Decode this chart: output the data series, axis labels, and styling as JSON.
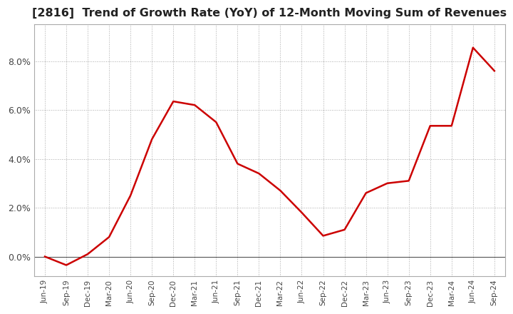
{
  "title": "[2816]  Trend of Growth Rate (YoY) of 12-Month Moving Sum of Revenues",
  "title_fontsize": 11.5,
  "line_color": "#cc0000",
  "background_color": "#ffffff",
  "plot_bg_color": "#ffffff",
  "grid_color": "#aaaaaa",
  "x_labels": [
    "Jun-19",
    "Sep-19",
    "Dec-19",
    "Mar-20",
    "Jun-20",
    "Sep-20",
    "Dec-20",
    "Mar-21",
    "Jun-21",
    "Sep-21",
    "Dec-21",
    "Mar-22",
    "Jun-22",
    "Sep-22",
    "Dec-22",
    "Mar-23",
    "Jun-23",
    "Sep-23",
    "Dec-23",
    "Mar-24",
    "Jun-24",
    "Sep-24"
  ],
  "y_values": [
    0.0,
    -0.35,
    0.1,
    0.8,
    2.5,
    4.8,
    6.35,
    6.2,
    5.5,
    3.8,
    3.4,
    2.7,
    1.8,
    0.85,
    1.1,
    2.6,
    3.0,
    3.1,
    5.35,
    5.35,
    8.55,
    7.6
  ],
  "ylim_min": -0.8,
  "ylim_max": 9.5,
  "yticks": [
    0.0,
    2.0,
    4.0,
    6.0,
    8.0
  ],
  "ytick_labels": [
    "0.0%",
    "2.0%",
    "4.0%",
    "6.0%",
    "8.0%"
  ],
  "zero_line_color": "#555555",
  "border_color": "#aaaaaa"
}
